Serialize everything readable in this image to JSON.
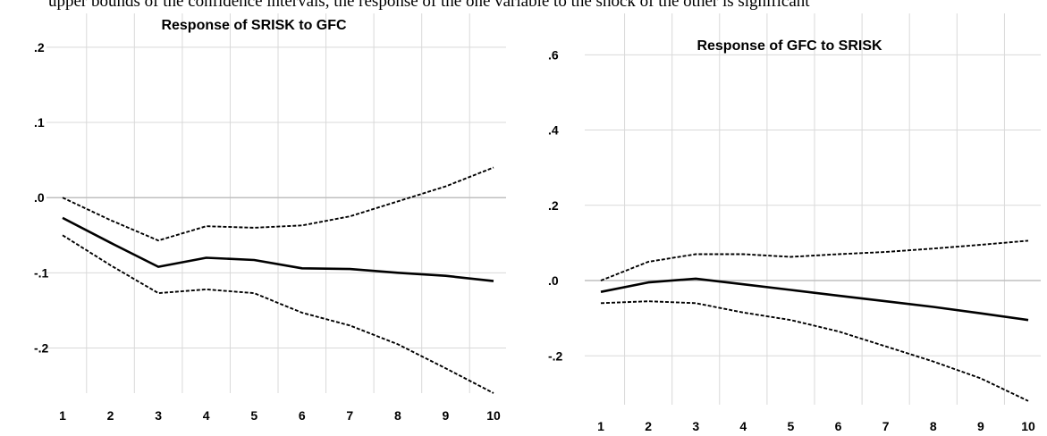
{
  "caption_fragment": "upper bounds of the confidence intervals, the response of the one variable to the shock of the other is significant",
  "chart_data": [
    {
      "type": "line",
      "title": "Response of SRISK to GFC",
      "x": [
        1,
        2,
        3,
        4,
        5,
        6,
        7,
        8,
        9,
        10
      ],
      "xticks": [
        "1",
        "2",
        "3",
        "4",
        "5",
        "6",
        "7",
        "8",
        "9",
        "10"
      ],
      "yticks": [
        {
          "v": 0.2,
          "label": ".2"
        },
        {
          "v": 0.1,
          "label": ".1"
        },
        {
          "v": 0.0,
          "label": ".0"
        },
        {
          "v": -0.1,
          "label": "-.1"
        },
        {
          "v": -0.2,
          "label": "-.2"
        }
      ],
      "ylim": [
        -0.26,
        0.245
      ],
      "grid": true,
      "series": [
        {
          "style": "solid",
          "values": [
            -0.027,
            -0.06,
            -0.092,
            -0.08,
            -0.083,
            -0.094,
            -0.095,
            -0.1,
            -0.104,
            -0.111
          ]
        },
        {
          "style": "dashed",
          "values": [
            0.0,
            -0.03,
            -0.057,
            -0.038,
            -0.04,
            -0.037,
            -0.025,
            -0.005,
            0.015,
            0.04
          ]
        },
        {
          "style": "dashed",
          "values": [
            -0.05,
            -0.09,
            -0.127,
            -0.122,
            -0.127,
            -0.153,
            -0.17,
            -0.195,
            -0.227,
            -0.26
          ]
        }
      ]
    },
    {
      "type": "line",
      "title": "Response of GFC to SRISK",
      "x": [
        1,
        2,
        3,
        4,
        5,
        6,
        7,
        8,
        9,
        10
      ],
      "xticks": [
        "1",
        "2",
        "3",
        "4",
        "5",
        "6",
        "7",
        "8",
        "9",
        "10"
      ],
      "yticks": [
        {
          "v": 0.6,
          "label": ".6"
        },
        {
          "v": 0.4,
          "label": ".4"
        },
        {
          "v": 0.2,
          "label": ".2"
        },
        {
          "v": 0.0,
          "label": ".0"
        },
        {
          "v": -0.2,
          "label": "-.2"
        }
      ],
      "ylim": [
        -0.33,
        0.71
      ],
      "grid": true,
      "series": [
        {
          "style": "solid",
          "values": [
            -0.03,
            -0.005,
            0.005,
            -0.01,
            -0.025,
            -0.04,
            -0.055,
            -0.07,
            -0.087,
            -0.105
          ]
        },
        {
          "style": "dashed",
          "values": [
            0.0,
            0.05,
            0.07,
            0.07,
            0.063,
            0.07,
            0.076,
            0.085,
            0.095,
            0.106
          ]
        },
        {
          "style": "dashed",
          "values": [
            -0.06,
            -0.055,
            -0.06,
            -0.085,
            -0.105,
            -0.135,
            -0.175,
            -0.215,
            -0.26,
            -0.32
          ]
        }
      ]
    }
  ]
}
